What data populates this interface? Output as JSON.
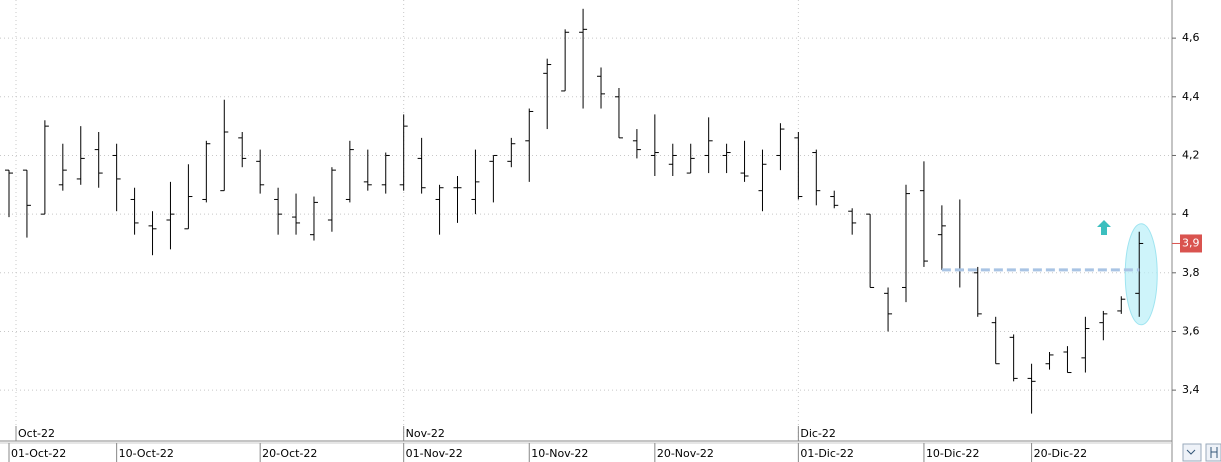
{
  "chart_data": {
    "type": "ohlc",
    "categories": [
      "01-Oct-22",
      null,
      null,
      null,
      null,
      null,
      "10-Oct-22",
      null,
      null,
      null,
      null,
      null,
      null,
      null,
      "20-Oct-22",
      null,
      null,
      null,
      null,
      null,
      null,
      null,
      "01-Nov-22",
      null,
      null,
      null,
      null,
      null,
      null,
      "10-Nov-22",
      null,
      null,
      null,
      null,
      null,
      null,
      "20-Nov-22",
      null,
      null,
      null,
      null,
      null,
      null,
      null,
      "01-Dic-22",
      null,
      null,
      null,
      null,
      null,
      null,
      "10-Dic-22",
      null,
      null,
      null,
      null,
      null,
      "20-Dic-22",
      null,
      null,
      null,
      null,
      null,
      null
    ],
    "months": [
      "Oct-22",
      null,
      null,
      null,
      null,
      null,
      null,
      null,
      null,
      null,
      null,
      null,
      null,
      null,
      null,
      null,
      null,
      null,
      null,
      null,
      null,
      null,
      "Nov-22",
      null,
      null,
      null,
      null,
      null,
      null,
      null,
      null,
      null,
      null,
      null,
      null,
      null,
      null,
      null,
      null,
      null,
      null,
      null,
      null,
      null,
      "Dic-22",
      null,
      null,
      null,
      null,
      null,
      null,
      null,
      null,
      null,
      null,
      null,
      null,
      null,
      null,
      null,
      null,
      null,
      null,
      null
    ],
    "open": [
      4.15,
      4.15,
      4.0,
      4.1,
      4.12,
      4.22,
      4.2,
      4.05,
      3.96,
      3.98,
      3.95,
      4.05,
      4.08,
      4.26,
      4.18,
      4.05,
      3.99,
      3.93,
      3.98,
      4.05,
      4.11,
      4.1,
      4.1,
      4.19,
      4.05,
      4.09,
      4.05,
      4.18,
      4.18,
      4.25,
      4.48,
      4.42,
      4.62,
      4.47,
      4.4,
      4.25,
      4.2,
      4.17,
      4.14,
      4.2,
      4.2,
      4.14,
      4.08,
      4.2,
      4.26,
      4.21,
      4.06,
      4.01,
      4.0,
      3.73,
      3.75,
      4.08,
      3.93,
      3.81,
      3.8,
      3.63,
      3.58,
      3.44,
      3.49,
      3.53,
      3.51,
      3.63,
      3.67,
      3.73
    ],
    "high": [
      4.15,
      4.15,
      4.32,
      4.24,
      4.3,
      4.28,
      4.24,
      4.09,
      4.01,
      4.11,
      4.17,
      4.25,
      4.39,
      4.28,
      4.22,
      4.09,
      4.07,
      4.06,
      4.16,
      4.25,
      4.22,
      4.21,
      4.34,
      4.26,
      4.1,
      4.13,
      4.22,
      4.2,
      4.26,
      4.36,
      4.53,
      4.63,
      4.7,
      4.5,
      4.43,
      4.29,
      4.34,
      4.24,
      4.24,
      4.33,
      4.24,
      4.25,
      4.22,
      4.31,
      4.28,
      4.22,
      4.08,
      4.02,
      4.0,
      3.75,
      4.1,
      4.18,
      4.03,
      4.05,
      3.82,
      3.65,
      3.59,
      3.49,
      3.53,
      3.55,
      3.65,
      3.67,
      3.72,
      3.94
    ],
    "low": [
      3.99,
      3.92,
      4.0,
      4.08,
      4.1,
      4.09,
      4.01,
      3.93,
      3.86,
      3.88,
      3.95,
      4.04,
      4.08,
      4.16,
      4.07,
      3.93,
      3.93,
      3.91,
      3.94,
      4.04,
      4.08,
      4.07,
      4.08,
      4.07,
      3.93,
      3.97,
      4.0,
      4.04,
      4.16,
      4.11,
      4.29,
      4.42,
      4.36,
      4.36,
      4.26,
      4.19,
      4.13,
      4.13,
      4.14,
      4.14,
      4.14,
      4.11,
      4.01,
      4.15,
      4.05,
      4.03,
      4.02,
      3.93,
      3.75,
      3.6,
      3.7,
      3.82,
      3.81,
      3.75,
      3.65,
      3.49,
      3.43,
      3.32,
      3.47,
      3.46,
      3.46,
      3.57,
      3.66,
      3.65
    ],
    "close": [
      4.14,
      4.03,
      4.3,
      4.15,
      4.19,
      4.14,
      4.12,
      3.97,
      3.95,
      4.0,
      4.06,
      4.24,
      4.28,
      4.19,
      4.1,
      4.0,
      3.97,
      4.04,
      4.15,
      4.22,
      4.1,
      4.2,
      4.3,
      4.09,
      4.09,
      4.09,
      4.11,
      4.2,
      4.24,
      4.35,
      4.51,
      4.62,
      4.63,
      4.41,
      4.26,
      4.22,
      4.21,
      4.2,
      4.19,
      4.25,
      4.21,
      4.13,
      4.17,
      4.29,
      4.06,
      4.08,
      4.03,
      3.97,
      3.75,
      3.66,
      4.07,
      3.84,
      3.96,
      3.81,
      3.66,
      3.49,
      3.44,
      3.43,
      3.52,
      3.46,
      3.61,
      3.66,
      3.71,
      3.9
    ],
    "color": "#000000",
    "ylim": [
      3.23,
      4.73
    ],
    "yticks": [
      {
        "value": 3.4,
        "label": "3,4"
      },
      {
        "value": 3.6,
        "label": "3,6"
      },
      {
        "value": 3.8,
        "label": "3,8"
      },
      4,
      {
        "value": 4.2,
        "label": "4,2"
      },
      {
        "value": 4.4,
        "label": "4,4"
      },
      {
        "value": 4.6,
        "label": "4,6"
      }
    ],
    "grid": true,
    "level": {
      "value": 3.81,
      "color": "#a9c4e4"
    },
    "last_price": {
      "value": 3.9,
      "label": "3,9",
      "color": "#d9534f"
    }
  }
}
